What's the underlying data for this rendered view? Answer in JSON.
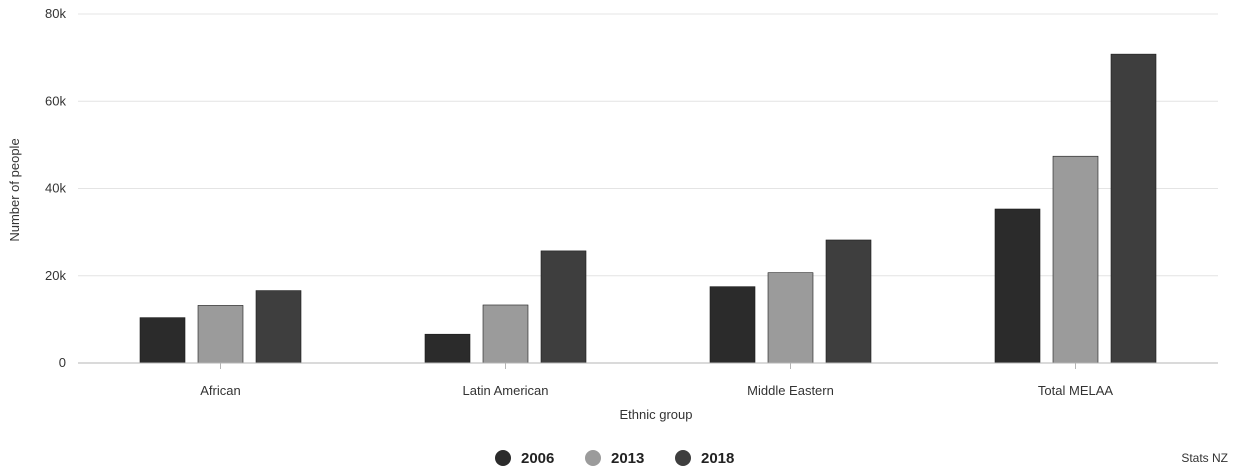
{
  "chart_data": {
    "type": "bar",
    "title": "",
    "xlabel": "Ethnic group",
    "ylabel": "Number of people",
    "categories": [
      "African",
      "Latin American",
      "Middle Eastern",
      "Total MELAA"
    ],
    "series": [
      {
        "name": "2006",
        "values": [
          10400,
          6600,
          17500,
          35300
        ],
        "color": "#2b2b2b"
      },
      {
        "name": "2013",
        "values": [
          13200,
          13300,
          20700,
          47400
        ],
        "color": "#9b9b9b"
      },
      {
        "name": "2018",
        "values": [
          16600,
          25700,
          28200,
          70800
        ],
        "color": "#3e3e3e"
      }
    ],
    "ylim": [
      0,
      80000
    ],
    "yticks": [
      0,
      20000,
      40000,
      60000,
      80000
    ],
    "ytick_labels": [
      "0",
      "20k",
      "40k",
      "60k",
      "80k"
    ],
    "grid": true,
    "legend_position": "bottom-center"
  },
  "source": "Stats NZ"
}
